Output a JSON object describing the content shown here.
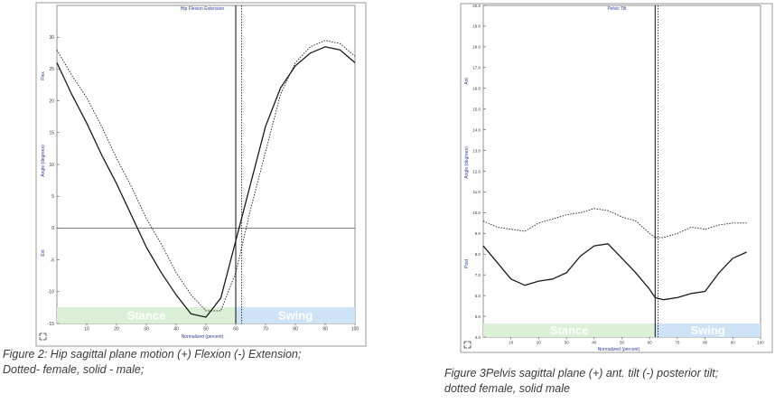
{
  "colors": {
    "stance_band": "#dbf0d6",
    "swing_band": "#cfe3f7",
    "band_text": "#ffffff",
    "axis_text": "#2b3d9a",
    "curve": "#1a1a1a"
  },
  "chart_data": [
    {
      "type": "line",
      "title": "Hip Flexion Extension",
      "ylabel": "Angle (degrees)",
      "ylabel_top": "Flex",
      "ylabel_bottom": "Ext",
      "xlabel": "Normalized (percent)",
      "xlim": [
        0,
        100
      ],
      "ylim": [
        -15,
        35
      ],
      "x_ticks": [
        10,
        20,
        30,
        40,
        50,
        60,
        70,
        80,
        90,
        100
      ],
      "y_ticks": [
        -15,
        -10,
        -5,
        0,
        5,
        10,
        15,
        20,
        25,
        30
      ],
      "zero_line": 0,
      "phases": [
        {
          "label": "Stance",
          "from": 0,
          "to": 60
        },
        {
          "label": "Swing",
          "from": 60,
          "to": 100
        }
      ],
      "markers": [
        {
          "x": 60,
          "style": "solid"
        },
        {
          "x": 62,
          "style": "dotted"
        }
      ],
      "x": [
        0,
        5,
        10,
        15,
        20,
        25,
        30,
        35,
        40,
        45,
        50,
        55,
        60,
        65,
        70,
        75,
        80,
        85,
        90,
        95,
        100
      ],
      "series": [
        {
          "style": "solid",
          "values": [
            26,
            21,
            16.5,
            11.5,
            7,
            2,
            -3,
            -7,
            -10.5,
            -13.5,
            -14,
            -11,
            -2,
            7,
            16,
            22,
            25.5,
            27.5,
            28.5,
            28,
            26
          ]
        },
        {
          "style": "dotted",
          "values": [
            28,
            24,
            20.5,
            16,
            11,
            6.5,
            1.5,
            -2.5,
            -7,
            -10.5,
            -13,
            -13,
            -7,
            3,
            12,
            21,
            26,
            28.5,
            29.5,
            29,
            27
          ]
        }
      ]
    },
    {
      "type": "line",
      "title": "Pelvic Tilt",
      "ylabel": "Angle (degrees)",
      "ylabel_top": "Ant",
      "ylabel_bottom": "Post",
      "xlabel": "Normalized (percent)",
      "xlim": [
        0,
        100
      ],
      "ylim": [
        4,
        20
      ],
      "y_ticks": [
        4.0,
        5.0,
        6.0,
        7.0,
        8.0,
        9.0,
        10.0,
        11.0,
        12.0,
        13.0,
        14.0,
        15.0,
        16.0,
        17.0,
        18.0,
        19.0,
        20.0
      ],
      "y_tick_labels": [
        "4.0",
        "5.0",
        "6.0",
        "7.0",
        "8.0",
        "9.0",
        "10.0",
        "11.0",
        "12.0",
        "13.0",
        "14.0",
        "15.0",
        "16.0",
        "17.0",
        "18.0",
        "19.0",
        "20.0"
      ],
      "x_ticks": [
        10,
        20,
        30,
        40,
        50,
        60,
        70,
        80,
        90,
        100
      ],
      "phases": [
        {
          "label": "Stance",
          "from": 0,
          "to": 62
        },
        {
          "label": "Swing",
          "from": 62,
          "to": 100
        }
      ],
      "markers": [
        {
          "x": 62,
          "style": "solid"
        },
        {
          "x": 63,
          "style": "dotted"
        }
      ],
      "x": [
        0,
        5,
        10,
        15,
        20,
        25,
        30,
        35,
        40,
        45,
        50,
        55,
        60,
        62,
        65,
        70,
        75,
        80,
        85,
        90,
        95
      ],
      "series": [
        {
          "style": "solid",
          "values": [
            8.4,
            7.6,
            6.8,
            6.5,
            6.7,
            6.8,
            7.1,
            7.9,
            8.4,
            8.5,
            7.8,
            7.1,
            6.3,
            5.9,
            5.8,
            5.9,
            6.1,
            6.2,
            7.1,
            7.8,
            8.1
          ]
        },
        {
          "style": "dotted",
          "values": [
            9.6,
            9.3,
            9.2,
            9.1,
            9.5,
            9.7,
            9.9,
            10.0,
            10.2,
            10.1,
            9.8,
            9.6,
            9.0,
            8.8,
            8.8,
            9.0,
            9.3,
            9.2,
            9.4,
            9.5,
            9.5
          ]
        }
      ]
    }
  ],
  "captions": [
    {
      "line1": "Figure 2:  Hip sagittal  plane motion (+) Flexion (-) Extension;",
      "line2": "Dotted- female, solid - male;"
    },
    {
      "line1": "Figure 3Pelvis sagittal plane (+) ant. tilt (-) posterior tilt;",
      "line2": "dotted female, solid male"
    }
  ]
}
